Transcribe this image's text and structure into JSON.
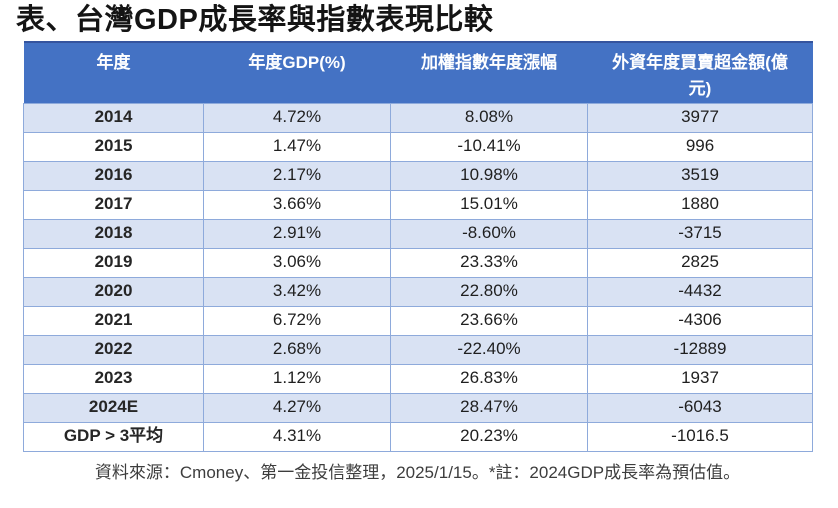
{
  "title": "表、台灣GDP成長率與指數表現比較",
  "table": {
    "headers": [
      "年度",
      "年度GDP(%)",
      "加權指數年度漲幅",
      "外資年度買賣超金額(億元)"
    ],
    "rows": [
      [
        "2014",
        "4.72%",
        "8.08%",
        "3977"
      ],
      [
        "2015",
        "1.47%",
        "-10.41%",
        "996"
      ],
      [
        "2016",
        "2.17%",
        "10.98%",
        "3519"
      ],
      [
        "2017",
        "3.66%",
        "15.01%",
        "1880"
      ],
      [
        "2018",
        "2.91%",
        "-8.60%",
        "-3715"
      ],
      [
        "2019",
        "3.06%",
        "23.33%",
        "2825"
      ],
      [
        "2020",
        "3.42%",
        "22.80%",
        "-4432"
      ],
      [
        "2021",
        "6.72%",
        "23.66%",
        "-4306"
      ],
      [
        "2022",
        "2.68%",
        "-22.40%",
        "-12889"
      ],
      [
        "2023",
        "1.12%",
        "26.83%",
        "1937"
      ],
      [
        "2024E",
        "4.27%",
        "28.47%",
        "-6043"
      ],
      [
        "GDP > 3平均",
        "4.31%",
        "20.23%",
        "-1016.5"
      ]
    ]
  },
  "footer": "資料來源：Cmoney、第一金投信整理，2025/1/15。*註：2024GDP成長率為預估值。",
  "colors": {
    "header_bg": "#4472C4",
    "header_top_border": "#35549E",
    "band_bg": "#D9E2F3",
    "border": "#8EAADB"
  }
}
